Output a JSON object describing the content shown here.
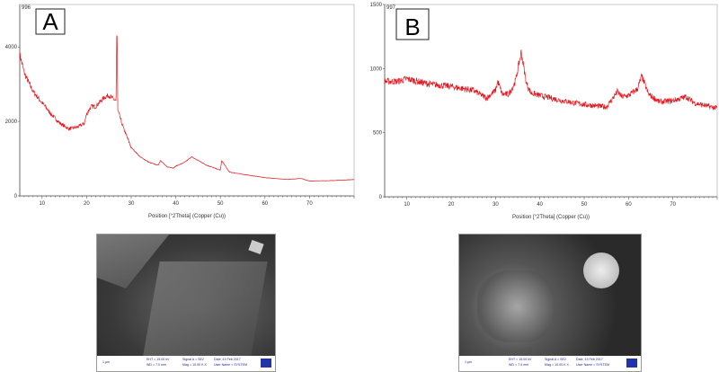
{
  "chart_data": [
    {
      "type": "line",
      "panel_label": "A",
      "scan_id": "996",
      "xlabel": "Position [°2Theta] (Copper (Cu))",
      "ylabel": "",
      "xlim": [
        5,
        80
      ],
      "ylim": [
        0,
        5000
      ],
      "xticks": [
        10,
        20,
        30,
        40,
        50,
        60,
        70
      ],
      "yticks": [
        0,
        2000,
        4000
      ],
      "grid": false,
      "color": "#e8141c",
      "series": [
        {
          "x": [
            5,
            6,
            8,
            10,
            12,
            14,
            16,
            18,
            19.5,
            20,
            21,
            22,
            24,
            25,
            26,
            26.6,
            26.8,
            27,
            28,
            30,
            32,
            34,
            36,
            36.6,
            38,
            39.5,
            40,
            42,
            43.5,
            45,
            47,
            50,
            50.3,
            52,
            55,
            60,
            65,
            68,
            70,
            75,
            80
          ],
          "y": [
            3800,
            3300,
            2800,
            2500,
            2200,
            1950,
            1800,
            1850,
            1950,
            2200,
            2400,
            2400,
            2650,
            2700,
            2600,
            2550,
            4750,
            2300,
            1900,
            1300,
            1050,
            900,
            820,
            950,
            780,
            750,
            800,
            900,
            1050,
            950,
            820,
            690,
            950,
            640,
            580,
            490,
            440,
            470,
            400,
            410,
            440
          ]
        }
      ]
    },
    {
      "type": "line",
      "panel_label": "B",
      "scan_id": "997",
      "xlabel": "Position [°2Theta] (Copper (Cu))",
      "ylabel": "",
      "xlim": [
        5,
        80
      ],
      "ylim": [
        0,
        1500
      ],
      "xticks": [
        10,
        20,
        30,
        40,
        50,
        60,
        70
      ],
      "yticks": [
        0,
        500,
        1000,
        1500
      ],
      "grid": false,
      "color": "#e8141c",
      "series": [
        {
          "x": [
            5,
            8,
            10,
            15,
            20,
            25,
            28,
            30,
            30.5,
            31.5,
            33,
            34.5,
            35.8,
            37,
            38,
            40,
            45,
            50,
            55,
            57.5,
            58.5,
            60,
            62,
            63,
            64.5,
            67,
            70,
            73,
            75,
            80
          ],
          "y": [
            900,
            900,
            920,
            880,
            860,
            830,
            770,
            830,
            900,
            800,
            800,
            900,
            1130,
            880,
            810,
            790,
            750,
            720,
            700,
            820,
            780,
            790,
            840,
            940,
            800,
            740,
            750,
            780,
            730,
            690
          ]
        }
      ]
    }
  ],
  "sem_images": [
    {
      "scale": "1 µm",
      "eht": "EHT = 15.00 kV",
      "wd": "WD = 7.0 mm",
      "signal": "Signal A = SE2",
      "mag": "Mag = 10.00 K X",
      "date": "Date :19 Feb 2017",
      "user": "User Name = SYSTEM"
    },
    {
      "scale": "1 µm",
      "eht": "EHT = 15.00 kV",
      "wd": "WD = 7.0 mm",
      "signal": "Signal A = SE2",
      "mag": "Mag = 10.00 K X",
      "date": "Date :19 Feb 2017",
      "user": "User Name = SYSTEM"
    }
  ]
}
